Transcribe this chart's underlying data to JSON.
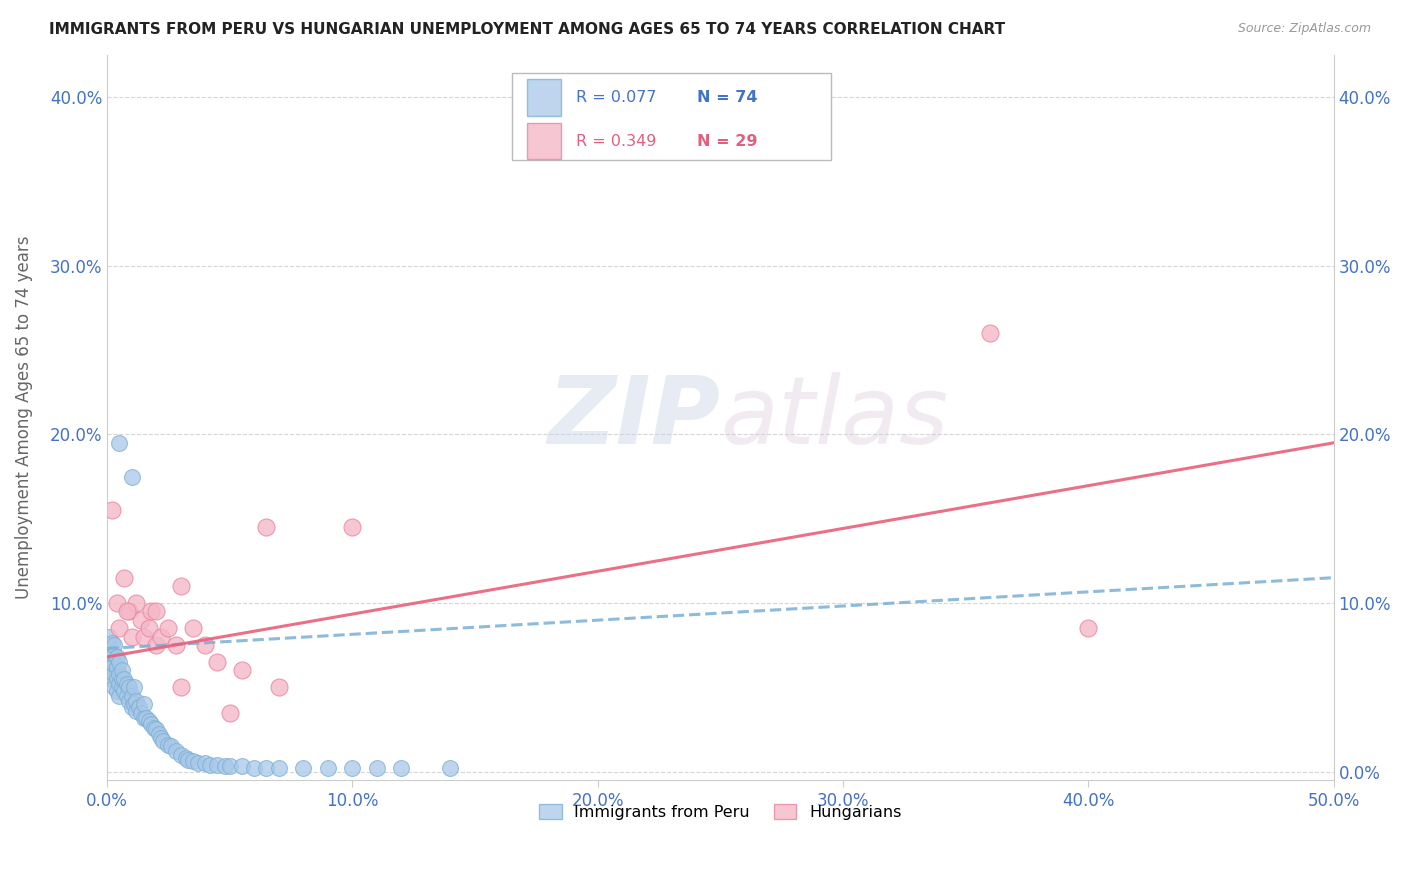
{
  "title": "IMMIGRANTS FROM PERU VS HUNGARIAN UNEMPLOYMENT AMONG AGES 65 TO 74 YEARS CORRELATION CHART",
  "source": "Source: ZipAtlas.com",
  "ylabel": "Unemployment Among Ages 65 to 74 years",
  "xlim": [
    0.0,
    0.5
  ],
  "ylim": [
    -0.005,
    0.425
  ],
  "xticks": [
    0.0,
    0.1,
    0.2,
    0.3,
    0.4,
    0.5
  ],
  "yticks": [
    0.0,
    0.1,
    0.2,
    0.3,
    0.4
  ],
  "xticklabels": [
    "0.0%",
    "10.0%",
    "20.0%",
    "30.0%",
    "40.0%",
    "50.0%"
  ],
  "yticklabels": [
    "",
    "10.0%",
    "20.0%",
    "30.0%",
    "40.0%"
  ],
  "yticklabels_right": [
    "0.0%",
    "10.0%",
    "20.0%",
    "30.0%",
    "40.0%"
  ],
  "legend_r1": "R = 0.077",
  "legend_n1": "N = 74",
  "legend_r2": "R = 0.349",
  "legend_n2": "N = 29",
  "color_blue": "#a8c8e8",
  "color_blue_edge": "#7aafd4",
  "color_pink": "#f4b8c8",
  "color_pink_edge": "#e888a0",
  "color_blue_line": "#7aafd4",
  "color_pink_line": "#e8607a",
  "watermark_zip": "ZIP",
  "watermark_atlas": "atlas",
  "blue_scatter_x": [
    0.001,
    0.001,
    0.001,
    0.001,
    0.001,
    0.002,
    0.002,
    0.002,
    0.002,
    0.003,
    0.003,
    0.003,
    0.003,
    0.003,
    0.004,
    0.004,
    0.004,
    0.004,
    0.005,
    0.005,
    0.005,
    0.005,
    0.006,
    0.006,
    0.006,
    0.007,
    0.007,
    0.008,
    0.008,
    0.009,
    0.009,
    0.01,
    0.01,
    0.011,
    0.011,
    0.012,
    0.012,
    0.013,
    0.014,
    0.015,
    0.015,
    0.016,
    0.017,
    0.018,
    0.019,
    0.02,
    0.021,
    0.022,
    0.023,
    0.025,
    0.026,
    0.028,
    0.03,
    0.032,
    0.033,
    0.035,
    0.037,
    0.04,
    0.042,
    0.045,
    0.048,
    0.05,
    0.055,
    0.06,
    0.065,
    0.07,
    0.08,
    0.09,
    0.1,
    0.11,
    0.12,
    0.14,
    0.005,
    0.01
  ],
  "blue_scatter_y": [
    0.06,
    0.068,
    0.072,
    0.075,
    0.08,
    0.055,
    0.062,
    0.07,
    0.076,
    0.05,
    0.058,
    0.064,
    0.07,
    0.075,
    0.048,
    0.055,
    0.062,
    0.068,
    0.045,
    0.052,
    0.058,
    0.065,
    0.05,
    0.055,
    0.06,
    0.048,
    0.055,
    0.045,
    0.052,
    0.042,
    0.05,
    0.038,
    0.045,
    0.04,
    0.05,
    0.036,
    0.042,
    0.038,
    0.035,
    0.032,
    0.04,
    0.032,
    0.03,
    0.028,
    0.026,
    0.025,
    0.022,
    0.02,
    0.018,
    0.016,
    0.015,
    0.012,
    0.01,
    0.008,
    0.007,
    0.006,
    0.005,
    0.005,
    0.004,
    0.004,
    0.003,
    0.003,
    0.003,
    0.002,
    0.002,
    0.002,
    0.002,
    0.002,
    0.002,
    0.002,
    0.002,
    0.002,
    0.195,
    0.175
  ],
  "pink_scatter_x": [
    0.002,
    0.004,
    0.005,
    0.007,
    0.009,
    0.01,
    0.012,
    0.014,
    0.015,
    0.017,
    0.018,
    0.02,
    0.022,
    0.025,
    0.028,
    0.03,
    0.035,
    0.04,
    0.045,
    0.055,
    0.065,
    0.07,
    0.36,
    0.4,
    0.008,
    0.03,
    0.02,
    0.05,
    0.1
  ],
  "pink_scatter_y": [
    0.155,
    0.1,
    0.085,
    0.115,
    0.095,
    0.08,
    0.1,
    0.09,
    0.08,
    0.085,
    0.095,
    0.075,
    0.08,
    0.085,
    0.075,
    0.11,
    0.085,
    0.075,
    0.065,
    0.06,
    0.145,
    0.05,
    0.26,
    0.085,
    0.095,
    0.05,
    0.095,
    0.035,
    0.145
  ],
  "blue_line_x": [
    0.0,
    0.5
  ],
  "blue_line_y": [
    0.073,
    0.115
  ],
  "pink_line_x": [
    0.0,
    0.5
  ],
  "pink_line_y": [
    0.068,
    0.195
  ]
}
